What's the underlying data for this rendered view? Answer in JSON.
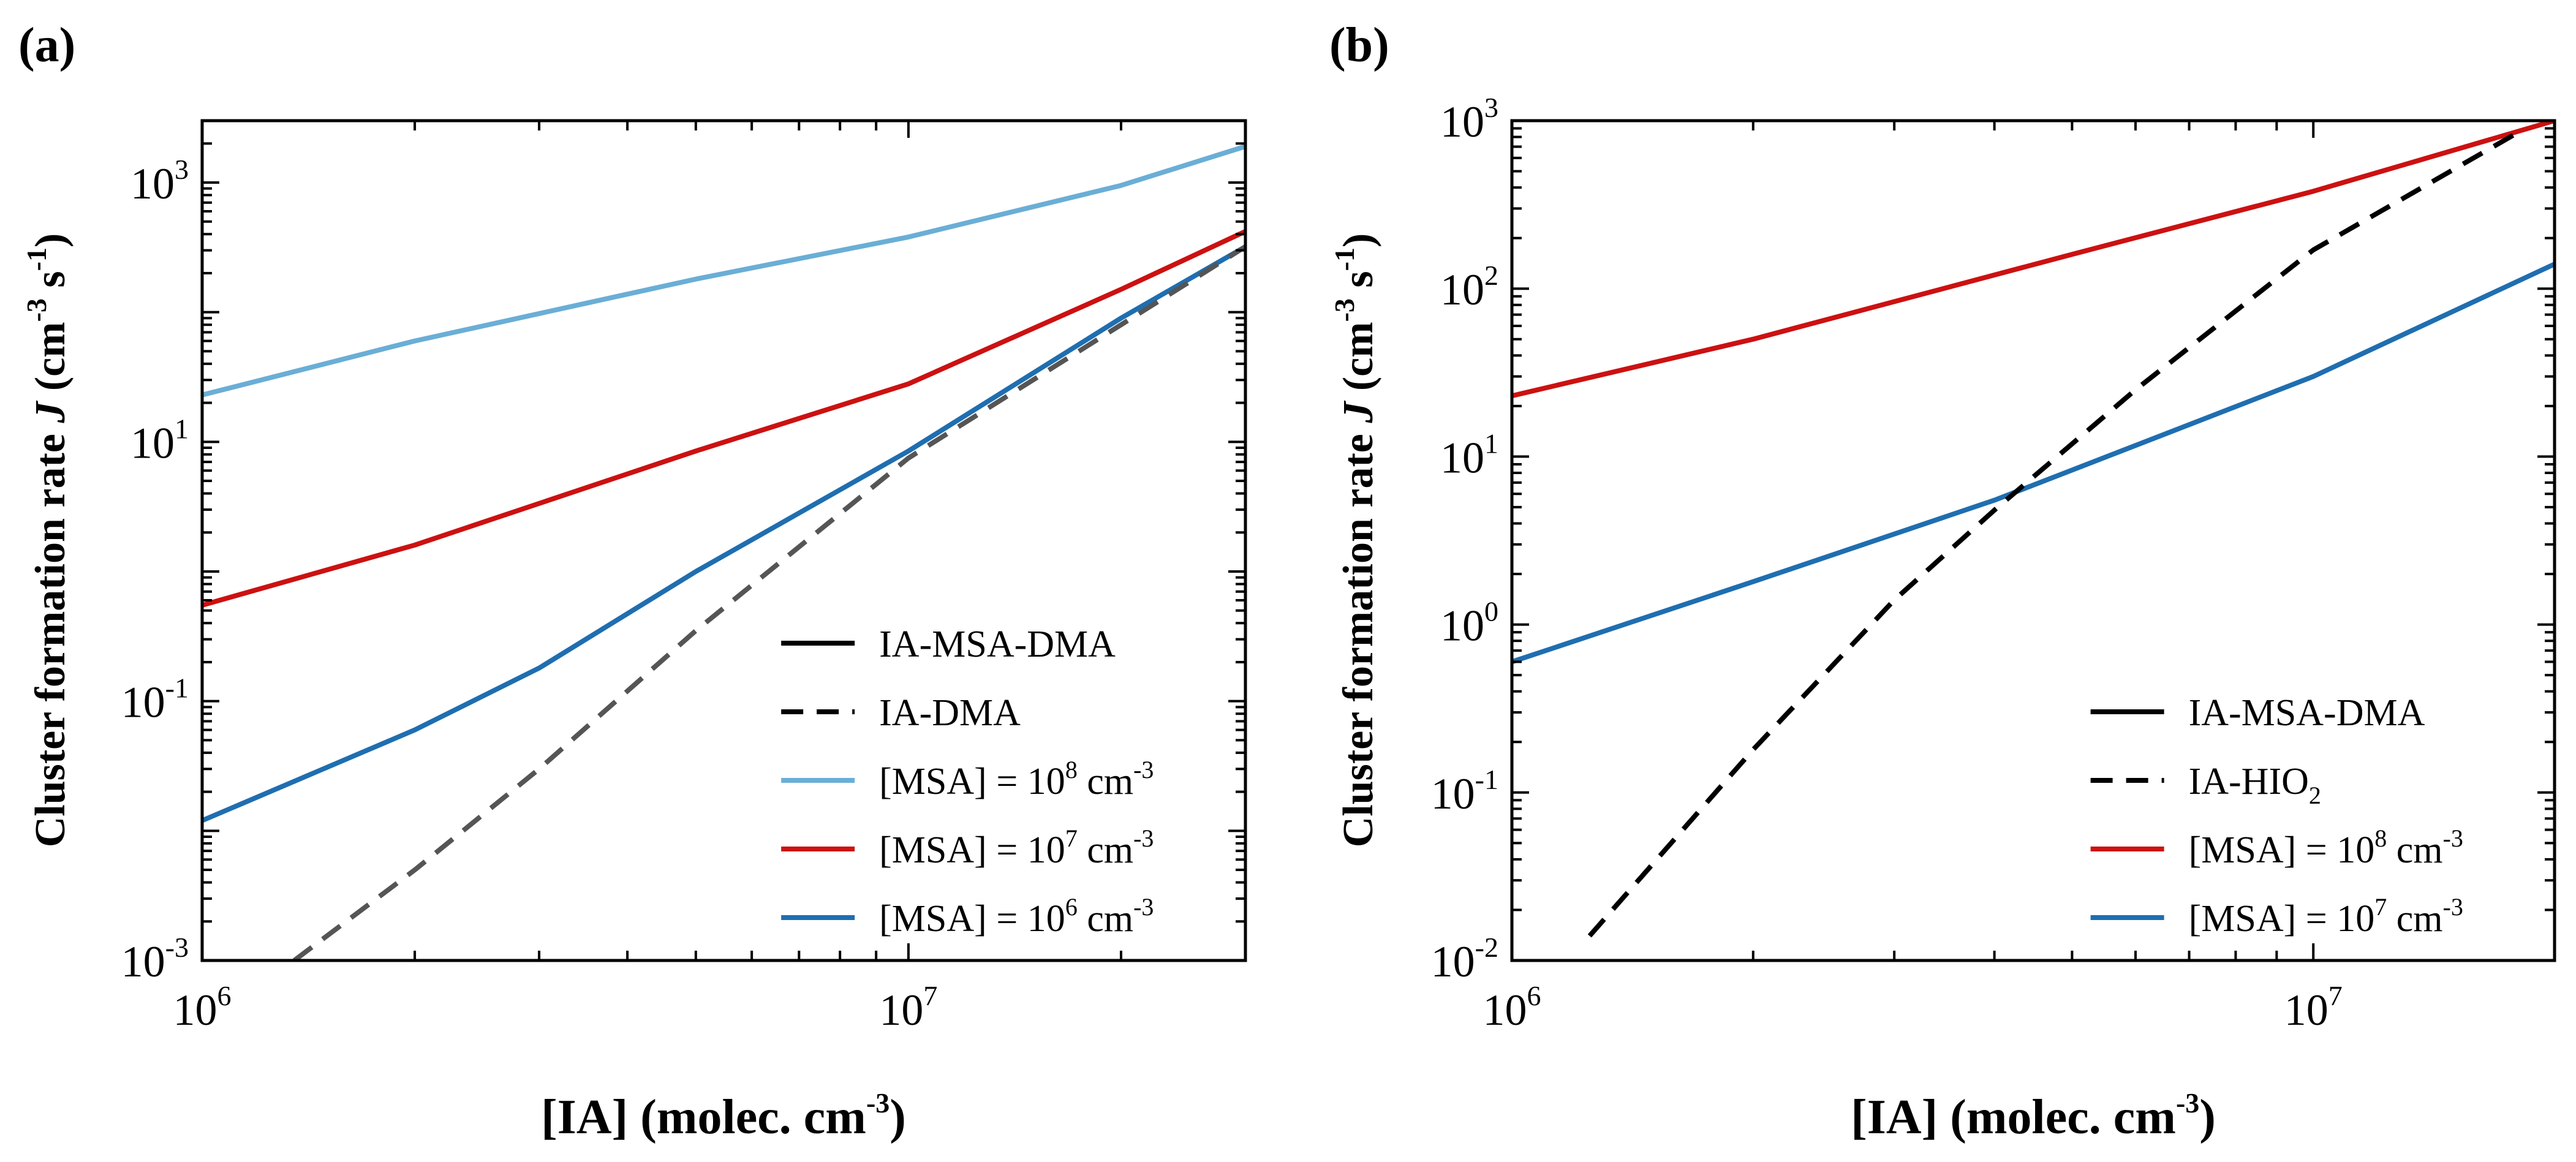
{
  "chart_data": [
    {
      "type": "line",
      "panel_label": "(a)",
      "xscale": "log",
      "yscale": "log",
      "xlim": [
        1000000,
        30000000
      ],
      "ylim": [
        0.001,
        3000
      ],
      "xlabel": {
        "main": "[IA] (molec. cm",
        "sup": "-3",
        "end": ")"
      },
      "ylabel": {
        "part1": "Cluster formation rate ",
        "italic": "J",
        "part2": " (cm",
        "sup1": "-3",
        "mid": " s",
        "sup2": "-1",
        "end": ")"
      },
      "x_ticks": [
        {
          "base": "10",
          "exp": "6",
          "value": 1000000
        },
        {
          "base": "10",
          "exp": "7",
          "value": 10000000
        }
      ],
      "y_ticks": [
        {
          "base": "10",
          "exp": "-3",
          "value": 0.001
        },
        {
          "base": "10",
          "exp": "-1",
          "value": 0.1
        },
        {
          "base": "10",
          "exp": "1",
          "value": 10
        },
        {
          "base": "10",
          "exp": "3",
          "value": 1000
        }
      ],
      "legend": {
        "position": "lower-right",
        "entries": [
          {
            "label": "IA-MSA-DMA",
            "style": "solid",
            "color": "#000000"
          },
          {
            "label": "IA-DMA",
            "style": "dashed",
            "color": "#000000"
          },
          {
            "label": "[MSA] = 10",
            "sup": "8",
            "unit": " cm",
            "unit_sup": "-3",
            "style": "solid",
            "color": "#6aaed6"
          },
          {
            "label": "[MSA] = 10",
            "sup": "7",
            "unit": " cm",
            "unit_sup": "-3",
            "style": "solid",
            "color": "#cc1111"
          },
          {
            "label": "[MSA] = 10",
            "sup": "6",
            "unit": " cm",
            "unit_sup": "-3",
            "style": "solid",
            "color": "#1f6eb0"
          }
        ]
      },
      "series": [
        {
          "label_ref": "[MSA] = 10^8, IA-MSA-DMA",
          "color": "#6aaed6",
          "style": "solid",
          "x": [
            1000000,
            2000000,
            5000000,
            10000000,
            20000000,
            30000000
          ],
          "y": [
            23,
            60,
            180,
            380,
            950,
            1900
          ]
        },
        {
          "label_ref": "[MSA] = 10^7, IA-MSA-DMA",
          "color": "#cc1111",
          "style": "solid",
          "x": [
            1000000,
            2000000,
            5000000,
            10000000,
            20000000,
            30000000
          ],
          "y": [
            0.55,
            1.6,
            8.5,
            28,
            150,
            420
          ]
        },
        {
          "label_ref": "[MSA] = 10^6, IA-MSA-DMA",
          "color": "#1f6eb0",
          "style": "solid",
          "x": [
            1000000,
            2000000,
            3000000,
            5000000,
            10000000,
            20000000,
            30000000
          ],
          "y": [
            0.012,
            0.06,
            0.18,
            1.0,
            8.5,
            90,
            320
          ]
        },
        {
          "label_ref": "IA-DMA",
          "color": "#555555",
          "style": "dashed",
          "x": [
            1350000,
            2000000,
            3000000,
            5000000,
            10000000,
            20000000,
            30000000
          ],
          "y": [
            0.001,
            0.005,
            0.03,
            0.35,
            7.5,
            80,
            320
          ]
        }
      ]
    },
    {
      "type": "line",
      "panel_label": "(b)",
      "xscale": "log",
      "yscale": "log",
      "xlim": [
        1000000,
        20000000
      ],
      "ylim": [
        0.01,
        1000
      ],
      "xlabel": {
        "main": "[IA] (molec. cm",
        "sup": "-3",
        "end": ")"
      },
      "ylabel": {
        "part1": "Cluster formation rate ",
        "italic": "J",
        "part2": " (cm",
        "sup1": "-3",
        "mid": " s",
        "sup2": "-1",
        "end": ")"
      },
      "x_ticks": [
        {
          "base": "10",
          "exp": "6",
          "value": 1000000
        },
        {
          "base": "10",
          "exp": "7",
          "value": 10000000
        }
      ],
      "y_ticks": [
        {
          "base": "10",
          "exp": "-2",
          "value": 0.01
        },
        {
          "base": "10",
          "exp": "-1",
          "value": 0.1
        },
        {
          "base": "10",
          "exp": "0",
          "value": 1
        },
        {
          "base": "10",
          "exp": "1",
          "value": 10
        },
        {
          "base": "10",
          "exp": "2",
          "value": 100
        },
        {
          "base": "10",
          "exp": "3",
          "value": 1000
        }
      ],
      "legend": {
        "position": "lower-right",
        "entries": [
          {
            "label": "IA-MSA-DMA",
            "style": "solid",
            "color": "#000000"
          },
          {
            "label": "IA-HIO",
            "sub": "2",
            "style": "dashed",
            "color": "#000000"
          },
          {
            "label": "[MSA] = 10",
            "sup": "8",
            "unit": " cm",
            "unit_sup": "-3",
            "style": "solid",
            "color": "#cc1111"
          },
          {
            "label": "[MSA] = 10",
            "sup": "7",
            "unit": " cm",
            "unit_sup": "-3",
            "style": "solid",
            "color": "#1f6eb0"
          }
        ]
      },
      "series": [
        {
          "label_ref": "[MSA] = 10^8, IA-MSA-DMA",
          "color": "#cc1111",
          "style": "solid",
          "x": [
            1000000,
            2000000,
            5000000,
            10000000,
            20000000
          ],
          "y": [
            23,
            50,
            160,
            380,
            1000
          ]
        },
        {
          "label_ref": "[MSA] = 10^7, IA-MSA-DMA",
          "color": "#1f6eb0",
          "style": "solid",
          "x": [
            1000000,
            2000000,
            4000000,
            10000000,
            20000000
          ],
          "y": [
            0.6,
            1.8,
            5.5,
            30,
            140
          ]
        },
        {
          "label_ref": "IA-HIO2",
          "color": "#000000",
          "style": "dashed",
          "x": [
            1250000,
            2000000,
            3000000,
            4000000,
            6000000,
            10000000,
            18000000
          ],
          "y": [
            0.014,
            0.18,
            1.4,
            4.8,
            25,
            170,
            850
          ]
        }
      ]
    }
  ]
}
